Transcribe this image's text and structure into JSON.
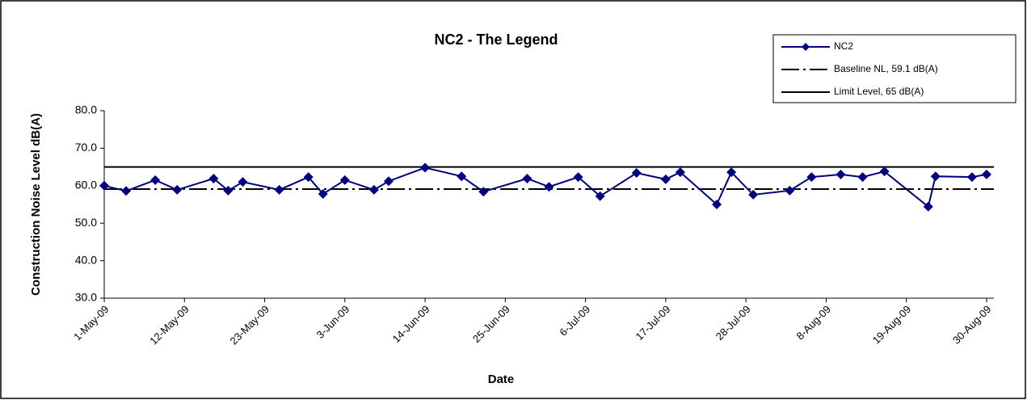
{
  "chart_data": {
    "type": "line",
    "title": "NC2 - The Legend",
    "x_label": "Date",
    "y_label": "Construction Noise Level  dB(A)",
    "x": [
      "2009-05-01",
      "2009-05-04",
      "2009-05-08",
      "2009-05-11",
      "2009-05-16",
      "2009-05-18",
      "2009-05-20",
      "2009-05-25",
      "2009-05-29",
      "2009-05-31",
      "2009-06-03",
      "2009-06-07",
      "2009-06-09",
      "2009-06-14",
      "2009-06-19",
      "2009-06-22",
      "2009-06-28",
      "2009-07-01",
      "2009-07-05",
      "2009-07-08",
      "2009-07-13",
      "2009-07-17",
      "2009-07-19",
      "2009-07-24",
      "2009-07-26",
      "2009-07-29",
      "2009-08-03",
      "2009-08-06",
      "2009-08-10",
      "2009-08-13",
      "2009-08-16",
      "2009-08-22",
      "2009-08-23",
      "2009-08-28",
      "2009-08-30"
    ],
    "series": [
      {
        "name": "NC2",
        "color": "#000080",
        "values": [
          60.0,
          58.6,
          61.5,
          58.9,
          61.9,
          58.7,
          61.0,
          58.9,
          62.3,
          57.8,
          61.5,
          58.9,
          61.2,
          64.8,
          62.5,
          58.4,
          61.9,
          59.7,
          62.3,
          57.2,
          63.4,
          61.7,
          63.6,
          55.0,
          63.6,
          57.6,
          58.7,
          62.3,
          63.0,
          62.3,
          63.8,
          54.4,
          62.5,
          62.3,
          63.0
        ]
      }
    ],
    "reference_lines": [
      {
        "name": "Baseline NL, 59.1 dB(A)",
        "value": 59.1,
        "color": "#000000",
        "style": "dash-dot"
      },
      {
        "name": "Limit Level, 65 dB(A)",
        "value": 65,
        "color": "#000000",
        "style": "solid"
      }
    ],
    "xlim": [
      "2009-05-01",
      "2009-08-31"
    ],
    "xticks": [
      {
        "value": "2009-05-01",
        "label": "1-May-09"
      },
      {
        "value": "2009-05-12",
        "label": "12-May-09"
      },
      {
        "value": "2009-05-23",
        "label": "23-May-09"
      },
      {
        "value": "2009-06-03",
        "label": "3-Jun-09"
      },
      {
        "value": "2009-06-14",
        "label": "14-Jun-09"
      },
      {
        "value": "2009-06-25",
        "label": "25-Jun-09"
      },
      {
        "value": "2009-07-06",
        "label": "6-Jul-09"
      },
      {
        "value": "2009-07-17",
        "label": "17-Jul-09"
      },
      {
        "value": "2009-07-28",
        "label": "28-Jul-09"
      },
      {
        "value": "2009-08-08",
        "label": "8-Aug-09"
      },
      {
        "value": "2009-08-19",
        "label": "19-Aug-09"
      },
      {
        "value": "2009-08-30",
        "label": "30-Aug-09"
      }
    ],
    "ylim": [
      30,
      80
    ],
    "yticks": [
      {
        "value": 30,
        "label": "30.0"
      },
      {
        "value": 40,
        "label": "40.0"
      },
      {
        "value": 50,
        "label": "50.0"
      },
      {
        "value": 60,
        "label": "60.0"
      },
      {
        "value": 70,
        "label": "70.0"
      },
      {
        "value": 80,
        "label": "80.0"
      }
    ],
    "grid": false,
    "legend": "top-right"
  }
}
